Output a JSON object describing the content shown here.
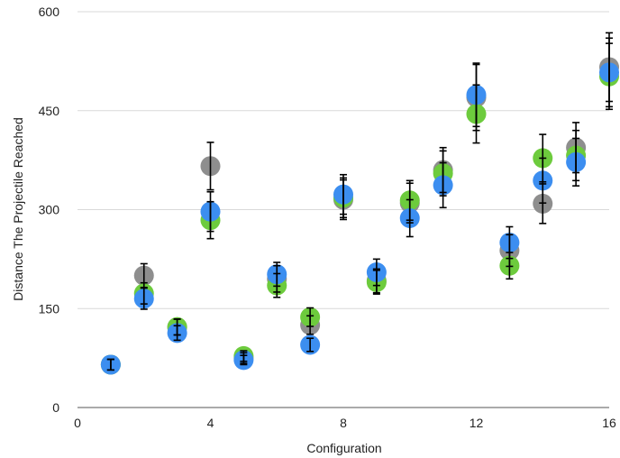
{
  "chart_data": {
    "type": "scatter",
    "title": "",
    "xlabel": "Configuration",
    "ylabel": "Distance The Projectile Reached",
    "xlim": [
      0,
      16
    ],
    "ylim": [
      0,
      600
    ],
    "xticks": [
      0,
      4,
      8,
      12,
      16
    ],
    "yticks": [
      0,
      150,
      300,
      450,
      600
    ],
    "grid": "horizontal",
    "legend": "none",
    "series": [
      {
        "color": "#8e8e8e",
        "points": [
          {
            "x": 1,
            "y": 65,
            "err": 8
          },
          {
            "x": 2,
            "y": 200,
            "err": 18
          },
          {
            "x": 3,
            "y": 122,
            "err": 12
          },
          {
            "x": 4,
            "y": 366,
            "err": 36
          },
          {
            "x": 5,
            "y": 75,
            "err": 8
          },
          {
            "x": 6,
            "y": 195,
            "err": 20
          },
          {
            "x": 7,
            "y": 125,
            "err": 14
          },
          {
            "x": 8,
            "y": 315,
            "err": 30
          },
          {
            "x": 9,
            "y": 192,
            "err": 18
          },
          {
            "x": 10,
            "y": 310,
            "err": 30
          },
          {
            "x": 11,
            "y": 360,
            "err": 34
          },
          {
            "x": 12,
            "y": 470,
            "err": 50
          },
          {
            "x": 13,
            "y": 238,
            "err": 24
          },
          {
            "x": 14,
            "y": 309,
            "err": 30
          },
          {
            "x": 15,
            "y": 394,
            "err": 38
          },
          {
            "x": 16,
            "y": 516,
            "err": 52
          }
        ]
      },
      {
        "color": "#6dcb3d",
        "points": [
          {
            "x": 1,
            "y": 65,
            "err": 8
          },
          {
            "x": 2,
            "y": 173,
            "err": 16
          },
          {
            "x": 3,
            "y": 122,
            "err": 12
          },
          {
            "x": 4,
            "y": 284,
            "err": 28
          },
          {
            "x": 5,
            "y": 78,
            "err": 8
          },
          {
            "x": 6,
            "y": 185,
            "err": 18
          },
          {
            "x": 7,
            "y": 137,
            "err": 14
          },
          {
            "x": 8,
            "y": 318,
            "err": 30
          },
          {
            "x": 9,
            "y": 190,
            "err": 18
          },
          {
            "x": 10,
            "y": 314,
            "err": 30
          },
          {
            "x": 11,
            "y": 355,
            "err": 34
          },
          {
            "x": 12,
            "y": 445,
            "err": 44
          },
          {
            "x": 13,
            "y": 215,
            "err": 20
          },
          {
            "x": 14,
            "y": 378,
            "err": 36
          },
          {
            "x": 15,
            "y": 382,
            "err": 38
          },
          {
            "x": 16,
            "y": 502,
            "err": 50
          }
        ]
      },
      {
        "color": "#3c8ef0",
        "points": [
          {
            "x": 1,
            "y": 65,
            "err": 8
          },
          {
            "x": 2,
            "y": 165,
            "err": 16
          },
          {
            "x": 3,
            "y": 113,
            "err": 11
          },
          {
            "x": 4,
            "y": 297,
            "err": 30
          },
          {
            "x": 5,
            "y": 72,
            "err": 7
          },
          {
            "x": 6,
            "y": 202,
            "err": 18
          },
          {
            "x": 7,
            "y": 95,
            "err": 10
          },
          {
            "x": 8,
            "y": 323,
            "err": 30
          },
          {
            "x": 9,
            "y": 205,
            "err": 20
          },
          {
            "x": 10,
            "y": 287,
            "err": 28
          },
          {
            "x": 11,
            "y": 337,
            "err": 34
          },
          {
            "x": 12,
            "y": 474,
            "err": 48
          },
          {
            "x": 13,
            "y": 250,
            "err": 24
          },
          {
            "x": 14,
            "y": 344,
            "err": 34
          },
          {
            "x": 15,
            "y": 372,
            "err": 36
          },
          {
            "x": 16,
            "y": 508,
            "err": 52
          }
        ]
      }
    ]
  }
}
